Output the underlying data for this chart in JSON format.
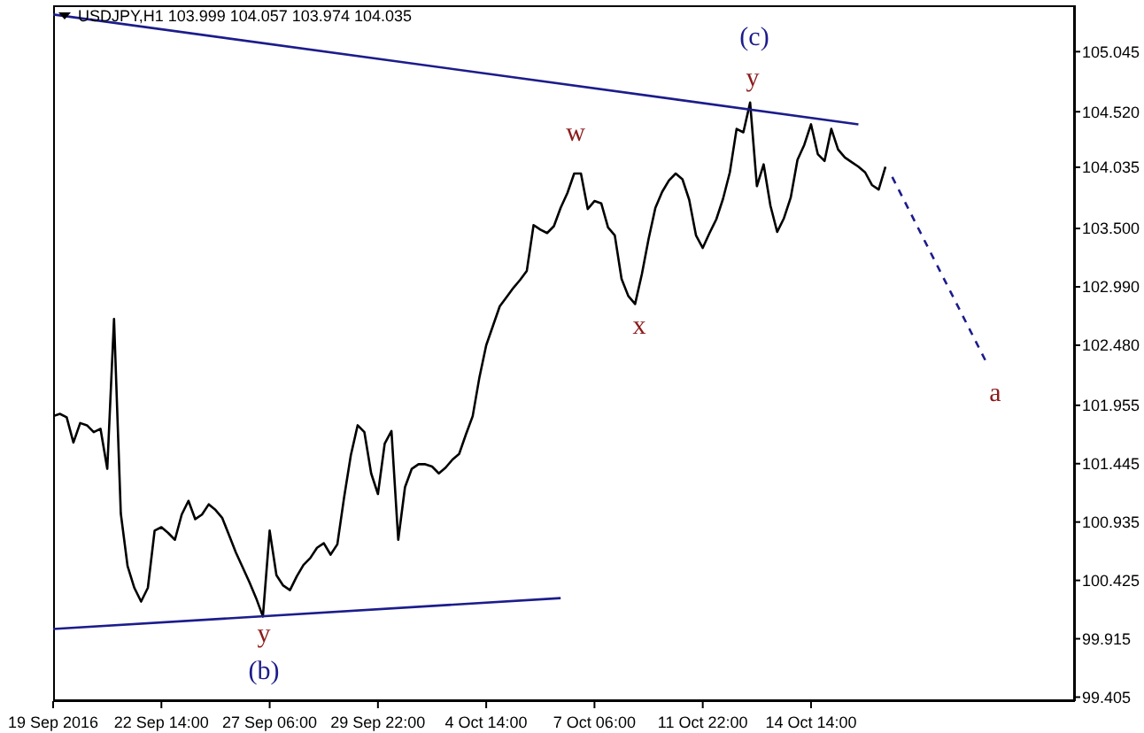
{
  "chart_data": {
    "type": "line",
    "title": "USDJPY,H1  103.999 104.057 103.974 104.035",
    "categories": [
      "19 Sep 2016",
      null,
      null,
      null,
      null,
      null,
      null,
      null,
      null,
      null,
      null,
      null,
      null,
      null,
      null,
      null,
      "22 Sep 14:00",
      null,
      null,
      null,
      null,
      null,
      null,
      null,
      null,
      null,
      null,
      null,
      null,
      null,
      null,
      null,
      "27 Sep 06:00",
      null,
      null,
      null,
      null,
      null,
      null,
      null,
      null,
      null,
      null,
      null,
      null,
      null,
      null,
      null,
      "29 Sep 22:00",
      null,
      null,
      null,
      null,
      null,
      null,
      null,
      null,
      null,
      null,
      null,
      null,
      null,
      null,
      null,
      "4 Oct 14:00",
      null,
      null,
      null,
      null,
      null,
      null,
      null,
      null,
      null,
      null,
      null,
      null,
      null,
      null,
      null,
      "7 Oct 06:00",
      null,
      null,
      null,
      null,
      null,
      null,
      null,
      null,
      null,
      null,
      null,
      null,
      null,
      null,
      null,
      "11 Oct 22:00",
      null,
      null,
      null,
      null,
      null,
      null,
      null,
      null,
      null,
      null,
      null,
      null,
      null,
      null,
      null,
      "14 Oct 14:00",
      null,
      null,
      null,
      null,
      null,
      null,
      null,
      null,
      null,
      null,
      null,
      null,
      null,
      null,
      null,
      null,
      null,
      null,
      null,
      null,
      null,
      null,
      null,
      null,
      null,
      null,
      null,
      null,
      null,
      null,
      null,
      null,
      null,
      null,
      null,
      null,
      null,
      null,
      null
    ],
    "ylim": [
      99.37,
      105.45
    ],
    "yticks": [
      {
        "value": 99.405,
        "label": "99.405"
      },
      {
        "value": 99.915,
        "label": "99.915"
      },
      {
        "value": 100.425,
        "label": "100.425"
      },
      {
        "value": 100.935,
        "label": "100.935"
      },
      {
        "value": 101.445,
        "label": "101.445"
      },
      {
        "value": 101.955,
        "label": "101.955"
      },
      {
        "value": 102.48,
        "label": "102.480"
      },
      {
        "value": 102.99,
        "label": "102.990"
      },
      {
        "value": 103.5,
        "label": "103.500"
      },
      {
        "value": 104.035,
        "label": "104.035"
      },
      {
        "value": 104.52,
        "label": "104.520"
      },
      {
        "value": 105.045,
        "label": "105.045"
      }
    ],
    "grid": false,
    "marker": "none",
    "line_style": "solid",
    "series": [
      {
        "color": "#000000",
        "values": [
          101.86,
          101.88,
          101.85,
          101.63,
          101.8,
          101.78,
          101.72,
          101.75,
          101.4,
          102.71,
          101.01,
          100.55,
          100.36,
          100.24,
          100.36,
          100.86,
          100.89,
          100.84,
          100.78,
          101.0,
          101.12,
          100.96,
          101.0,
          101.09,
          101.04,
          100.97,
          100.82,
          100.67,
          100.54,
          100.41,
          100.27,
          100.11,
          100.86,
          100.47,
          100.38,
          100.34,
          100.46,
          100.56,
          100.62,
          100.71,
          100.75,
          100.65,
          100.74,
          101.15,
          101.52,
          101.78,
          101.72,
          101.36,
          101.18,
          101.62,
          101.73,
          100.78,
          101.24,
          101.4,
          101.44,
          101.44,
          101.42,
          101.36,
          101.41,
          101.48,
          101.53,
          101.7,
          101.86,
          102.2,
          102.48,
          102.65,
          102.82,
          102.9,
          102.98,
          103.05,
          103.13,
          103.53,
          103.49,
          103.46,
          103.52,
          103.68,
          103.81,
          103.98,
          103.98,
          103.67,
          103.74,
          103.72,
          103.51,
          103.44,
          103.06,
          102.91,
          102.84,
          103.1,
          103.41,
          103.68,
          103.82,
          103.92,
          103.98,
          103.93,
          103.75,
          103.44,
          103.33,
          103.46,
          103.58,
          103.76,
          103.99,
          104.37,
          104.34,
          104.6,
          103.87,
          104.06,
          103.7,
          103.47,
          103.59,
          103.77,
          104.1,
          104.23,
          104.41,
          104.15,
          104.09,
          104.37,
          104.19,
          104.12,
          104.08,
          104.04,
          103.99,
          103.88,
          103.84,
          104.04,
          null,
          null,
          null,
          null,
          null,
          null,
          null,
          null,
          null,
          null,
          null,
          null,
          null,
          null,
          null,
          null,
          null,
          null,
          null,
          null,
          null,
          null,
          null,
          null,
          null,
          null,
          null,
          null
        ]
      },
      {
        "color": "#1c1c8c",
        "values": [
          105.37,
          null,
          null,
          null,
          null,
          null,
          null,
          null,
          null,
          null,
          null,
          null,
          null,
          null,
          null,
          null,
          null,
          null,
          null,
          null,
          null,
          null,
          null,
          null,
          null,
          null,
          null,
          null,
          null,
          null,
          null,
          null,
          null,
          null,
          null,
          null,
          null,
          null,
          null,
          null,
          null,
          null,
          null,
          null,
          null,
          null,
          null,
          null,
          null,
          null,
          null,
          null,
          null,
          null,
          null,
          null,
          null,
          null,
          null,
          null,
          null,
          null,
          null,
          null,
          null,
          null,
          null,
          null,
          null,
          null,
          null,
          null,
          null,
          null,
          null,
          null,
          null,
          null,
          null,
          null,
          null,
          null,
          null,
          null,
          null,
          null,
          null,
          null,
          null,
          null,
          null,
          null,
          null,
          null,
          null,
          null,
          null,
          null,
          null,
          null,
          null,
          null,
          null,
          null,
          null,
          null,
          null,
          null,
          null,
          null,
          null,
          null,
          null,
          null,
          null,
          null,
          null,
          null,
          null,
          104.41,
          null,
          null,
          null,
          null,
          null,
          null,
          null,
          null,
          null,
          null,
          null,
          null,
          null,
          null,
          null,
          null,
          null,
          null,
          null,
          null,
          null,
          null,
          null,
          null,
          null,
          null,
          null,
          null,
          null,
          null,
          null,
          null
        ]
      },
      {
        "color": "#1c1c8c",
        "values": [
          100.0,
          null,
          null,
          null,
          null,
          null,
          null,
          null,
          null,
          null,
          null,
          null,
          null,
          null,
          null,
          null,
          null,
          null,
          null,
          null,
          null,
          null,
          null,
          null,
          null,
          null,
          null,
          null,
          null,
          null,
          null,
          null,
          null,
          null,
          null,
          null,
          null,
          null,
          null,
          null,
          null,
          null,
          null,
          null,
          null,
          null,
          null,
          null,
          null,
          null,
          null,
          null,
          null,
          null,
          null,
          null,
          null,
          null,
          null,
          null,
          null,
          null,
          null,
          null,
          null,
          null,
          null,
          null,
          null,
          null,
          null,
          null,
          null,
          null,
          null,
          100.27,
          null,
          null,
          null,
          null,
          null,
          null,
          null,
          null,
          null,
          null,
          null,
          null,
          null,
          null,
          null,
          null,
          null,
          null,
          null,
          null,
          null,
          null,
          null,
          null,
          null,
          null,
          null,
          null,
          null,
          null,
          null,
          null,
          null,
          null,
          null,
          null,
          null,
          null,
          null,
          null,
          null,
          null,
          null,
          null,
          null,
          null,
          null,
          null,
          null,
          null,
          null,
          null,
          null,
          null,
          null,
          null,
          null,
          null,
          null,
          null,
          null,
          null,
          null,
          null,
          null,
          null,
          null,
          null,
          null,
          null,
          null,
          null,
          null,
          null,
          null,
          null
        ]
      },
      {
        "color": "#1c1c8c",
        "line_style": "dashed",
        "values": [
          null,
          null,
          null,
          null,
          null,
          null,
          null,
          null,
          null,
          null,
          null,
          null,
          null,
          null,
          null,
          null,
          null,
          null,
          null,
          null,
          null,
          null,
          null,
          null,
          null,
          null,
          null,
          null,
          null,
          null,
          null,
          null,
          null,
          null,
          null,
          null,
          null,
          null,
          null,
          null,
          null,
          null,
          null,
          null,
          null,
          null,
          null,
          null,
          null,
          null,
          null,
          null,
          null,
          null,
          null,
          null,
          null,
          null,
          null,
          null,
          null,
          null,
          null,
          null,
          null,
          null,
          null,
          null,
          null,
          null,
          null,
          null,
          null,
          null,
          null,
          null,
          null,
          null,
          null,
          null,
          null,
          null,
          null,
          null,
          null,
          null,
          null,
          null,
          null,
          null,
          null,
          null,
          null,
          null,
          null,
          null,
          null,
          null,
          null,
          null,
          null,
          null,
          null,
          null,
          null,
          null,
          null,
          null,
          null,
          null,
          null,
          null,
          null,
          null,
          null,
          null,
          null,
          null,
          null,
          null,
          null,
          null,
          null,
          null,
          103.95,
          null,
          null,
          null,
          null,
          null,
          null,
          null,
          null,
          null,
          null,
          null,
          null,
          null,
          102.32,
          null,
          null,
          null,
          null,
          null,
          null,
          null,
          null,
          null,
          null,
          null,
          null,
          null
        ]
      }
    ],
    "annotations": [
      "(c)",
      "y",
      "w",
      "x",
      "y",
      "(b)",
      "a"
    ]
  }
}
